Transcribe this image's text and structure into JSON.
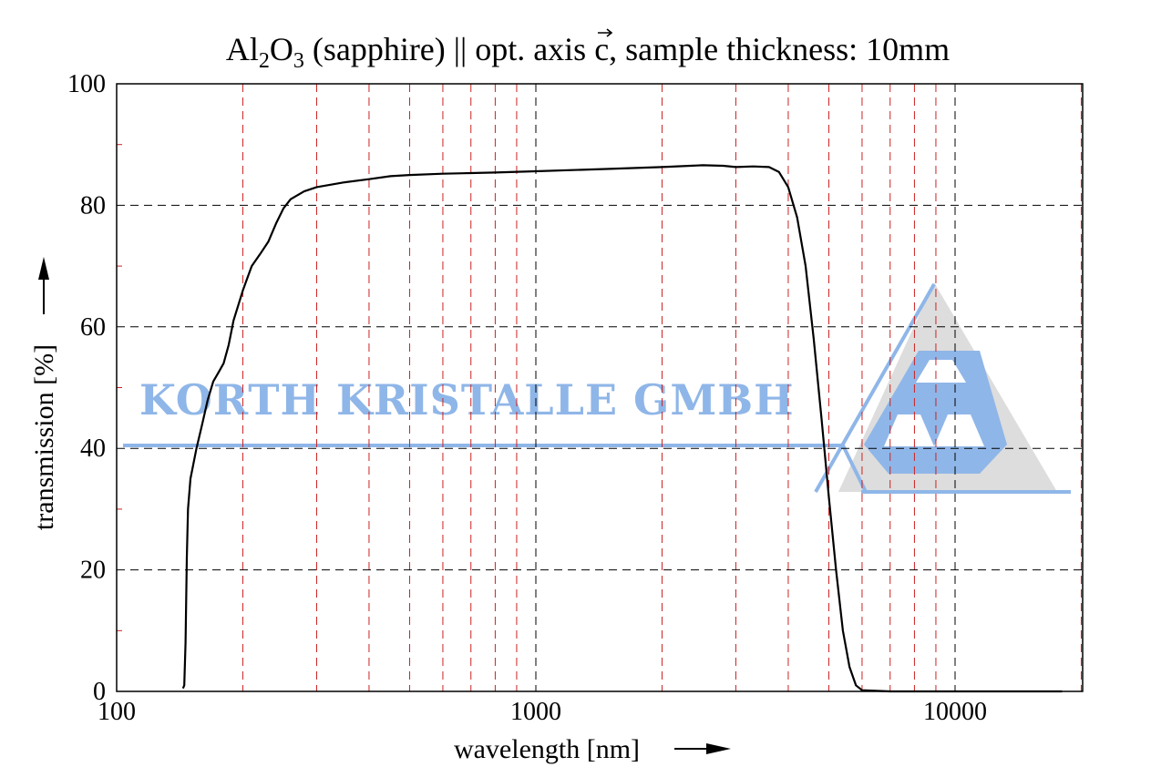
{
  "chart_data": {
    "type": "line",
    "title_prefix": "Al",
    "title_sub1": "2",
    "title_mid": "O",
    "title_sub2": "3",
    "title_suffix": " (sapphire) || opt. axis ",
    "title_vector": "c",
    "title_end": ", sample thickness: 10mm",
    "xlabel": "wavelength [nm]",
    "ylabel": "transmission [%]",
    "x_scale": "log",
    "xlim": [
      100,
      20000
    ],
    "ylim": [
      0,
      100
    ],
    "x_ticks": [
      {
        "value": 100,
        "label": "100"
      },
      {
        "value": 1000,
        "label": "1000"
      },
      {
        "value": 10000,
        "label": "10000"
      }
    ],
    "y_ticks": [
      {
        "value": 0,
        "label": "0"
      },
      {
        "value": 20,
        "label": "20"
      },
      {
        "value": 40,
        "label": "40"
      },
      {
        "value": 60,
        "label": "60"
      },
      {
        "value": 80,
        "label": "80"
      },
      {
        "value": 100,
        "label": "100"
      }
    ],
    "grid": true,
    "series": [
      {
        "color": "#000000",
        "points": [
          [
            144,
            0.5
          ],
          [
            145,
            1.0
          ],
          [
            146,
            8
          ],
          [
            147,
            22
          ],
          [
            148,
            30
          ],
          [
            150,
            35
          ],
          [
            155,
            40
          ],
          [
            160,
            44
          ],
          [
            165,
            48
          ],
          [
            170,
            51
          ],
          [
            175,
            52.5
          ],
          [
            180,
            54
          ],
          [
            185,
            57
          ],
          [
            190,
            61
          ],
          [
            200,
            66
          ],
          [
            210,
            70
          ],
          [
            220,
            72
          ],
          [
            230,
            74
          ],
          [
            240,
            77
          ],
          [
            250,
            79.5
          ],
          [
            260,
            81
          ],
          [
            280,
            82.3
          ],
          [
            300,
            83
          ],
          [
            350,
            83.8
          ],
          [
            400,
            84.3
          ],
          [
            450,
            84.8
          ],
          [
            500,
            85
          ],
          [
            600,
            85.2
          ],
          [
            700,
            85.3
          ],
          [
            800,
            85.4
          ],
          [
            1000,
            85.6
          ],
          [
            1500,
            86.0
          ],
          [
            2000,
            86.3
          ],
          [
            2500,
            86.6
          ],
          [
            2800,
            86.5
          ],
          [
            3000,
            86.3
          ],
          [
            3300,
            86.4
          ],
          [
            3600,
            86.3
          ],
          [
            3800,
            85.5
          ],
          [
            4000,
            83
          ],
          [
            4200,
            78
          ],
          [
            4400,
            70
          ],
          [
            4600,
            58
          ],
          [
            4800,
            45
          ],
          [
            5000,
            32
          ],
          [
            5200,
            20
          ],
          [
            5400,
            10
          ],
          [
            5600,
            4
          ],
          [
            5800,
            1
          ],
          [
            6000,
            0.2
          ],
          [
            7000,
            0
          ],
          [
            10000,
            0
          ],
          [
            15000,
            0
          ],
          [
            18000,
            0
          ]
        ]
      }
    ],
    "watermark": "KORTH KRISTALLE GMBH",
    "colors": {
      "curve": "#000000",
      "major_grid": "#000000",
      "minor_grid": "#cc2222",
      "watermark_blue": "#8fb6e8",
      "watermark_gray": "#dddddd"
    }
  }
}
